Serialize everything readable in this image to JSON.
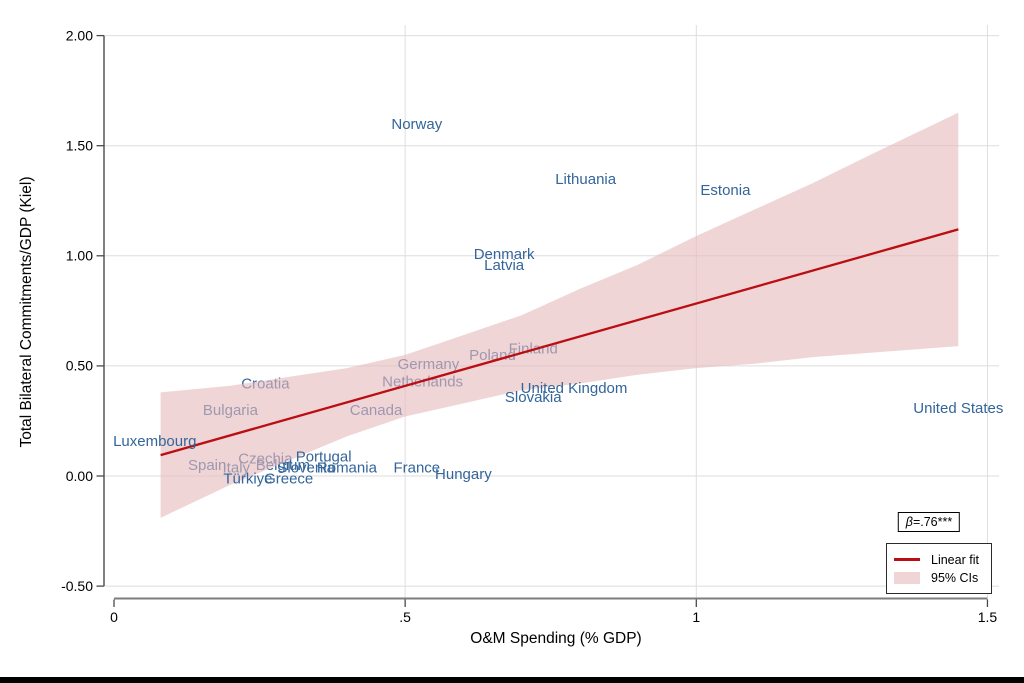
{
  "figure": {
    "y_axis": {
      "label": "Total Bilateral Commitments/GDP (Kiel)",
      "tick_labels": [
        "2.00",
        "1.50",
        "1.00",
        "0.50",
        "0.00",
        "-0.50"
      ],
      "tick_values": [
        2,
        1.5,
        1,
        0.5,
        0,
        -0.5
      ]
    },
    "x_axis": {
      "label": "O&M Spending (% GDP)",
      "tick_labels": [
        "0",
        ".5",
        "1",
        "1.5"
      ],
      "tick_values": [
        0,
        0.5,
        1,
        1.5
      ]
    },
    "annotation": {
      "beta_symbol": "β",
      "beta_value": "=.76***"
    },
    "legend": {
      "items": [
        {
          "label": "Linear fit",
          "swatch": "line"
        },
        {
          "label": "95% CIs",
          "swatch": "area"
        }
      ]
    },
    "colors": {
      "label_blue": "#33659a",
      "fit_red": "#bb0e12",
      "band_fill": "rgba(230,185,188,0.6)",
      "band_flat": "#f0d5d7",
      "grid": "#dedede",
      "y_axis_line": "#4a4a4a",
      "x_axis_line": "#7d7d7d",
      "tick": "#4a4a4a",
      "text": "#000000"
    }
  },
  "chart_data": {
    "type": "scatter",
    "title": "",
    "xlabel": "O&M Spending (% GDP)",
    "ylabel": "Total Bilateral Commitments/GDP (Kiel)",
    "xlim": [
      0,
      1.5
    ],
    "ylim": [
      -0.5,
      2
    ],
    "grid": true,
    "legend_position": "bottom-right",
    "beta_annotation": "β=.76***",
    "points": [
      {
        "label": "Norway",
        "x": 0.52,
        "y": 1.6,
        "layer": "front"
      },
      {
        "label": "Lithuania",
        "x": 0.81,
        "y": 1.35,
        "layer": "front"
      },
      {
        "label": "Estonia",
        "x": 1.05,
        "y": 1.3,
        "layer": "front"
      },
      {
        "label": "Denmark",
        "x": 0.67,
        "y": 1.01,
        "layer": "front"
      },
      {
        "label": "Latvia",
        "x": 0.67,
        "y": 0.96,
        "layer": "front"
      },
      {
        "label": "Finland",
        "x": 0.72,
        "y": 0.58,
        "layer": "behind"
      },
      {
        "label": "Poland",
        "x": 0.65,
        "y": 0.55,
        "layer": "behind"
      },
      {
        "label": "Germany",
        "x": 0.54,
        "y": 0.51,
        "layer": "behind"
      },
      {
        "label": "Netherlands",
        "x": 0.53,
        "y": 0.43,
        "layer": "behind"
      },
      {
        "label": "Croatia",
        "x": 0.26,
        "y": 0.42,
        "layer": "behind"
      },
      {
        "label": "United Kingdom",
        "x": 0.79,
        "y": 0.4,
        "layer": "front"
      },
      {
        "label": "Slovakia",
        "x": 0.72,
        "y": 0.36,
        "layer": "front"
      },
      {
        "label": "United States",
        "x": 1.45,
        "y": 0.31,
        "layer": "front"
      },
      {
        "label": "Bulgaria",
        "x": 0.2,
        "y": 0.3,
        "layer": "behind"
      },
      {
        "label": "Canada",
        "x": 0.45,
        "y": 0.3,
        "layer": "behind"
      },
      {
        "label": "Luxembourg",
        "x": 0.07,
        "y": 0.16,
        "layer": "front"
      },
      {
        "label": "Portugal",
        "x": 0.36,
        "y": 0.09,
        "layer": "front"
      },
      {
        "label": "Czechia",
        "x": 0.26,
        "y": 0.08,
        "layer": "behind"
      },
      {
        "label": "Spain",
        "x": 0.16,
        "y": 0.05,
        "layer": "behind"
      },
      {
        "label": "Belgium",
        "x": 0.29,
        "y": 0.05,
        "layer": "behind"
      },
      {
        "label": "Italy",
        "x": 0.21,
        "y": 0.04,
        "layer": "behind"
      },
      {
        "label": "Slovenia",
        "x": 0.33,
        "y": 0.04,
        "layer": "behind"
      },
      {
        "label": "Romania",
        "x": 0.4,
        "y": 0.04,
        "layer": "front"
      },
      {
        "label": "France",
        "x": 0.52,
        "y": 0.04,
        "layer": "front"
      },
      {
        "label": "Hungary",
        "x": 0.6,
        "y": 0.01,
        "layer": "front"
      },
      {
        "label": "Türkiye",
        "x": 0.23,
        "y": -0.01,
        "layer": "front"
      },
      {
        "label": "Greece",
        "x": 0.3,
        "y": -0.01,
        "layer": "front"
      }
    ],
    "fit_line": {
      "x": [
        0.08,
        1.45
      ],
      "y": [
        0.095,
        1.12
      ],
      "beta": 0.76,
      "significance": "***"
    },
    "ci_band": {
      "level": "95%",
      "x": [
        0.08,
        0.2,
        0.3,
        0.4,
        0.5,
        0.6,
        0.7,
        0.8,
        0.9,
        1.0,
        1.1,
        1.2,
        1.3,
        1.45
      ],
      "upper": [
        0.38,
        0.41,
        0.45,
        0.49,
        0.55,
        0.64,
        0.73,
        0.85,
        0.96,
        1.09,
        1.21,
        1.33,
        1.46,
        1.65
      ],
      "lower": [
        -0.19,
        -0.04,
        0.07,
        0.18,
        0.27,
        0.33,
        0.39,
        0.42,
        0.46,
        0.49,
        0.51,
        0.54,
        0.56,
        0.59
      ]
    }
  }
}
